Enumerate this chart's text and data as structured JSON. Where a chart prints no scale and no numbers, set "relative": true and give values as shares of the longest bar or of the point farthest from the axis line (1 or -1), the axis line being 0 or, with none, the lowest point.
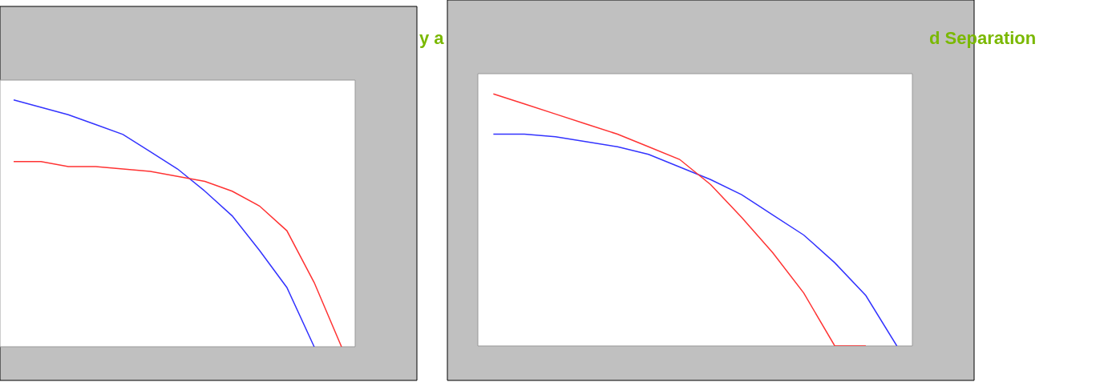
{
  "chart_data": [
    {
      "type": "line",
      "relative": true,
      "annotations": [
        "y a"
      ],
      "categories": [
        null,
        null,
        null,
        null,
        null,
        null,
        null,
        null,
        null,
        null,
        null,
        null,
        null
      ],
      "series": [
        {
          "color": "#3333ff",
          "values": [
            1,
            0.97,
            0.94,
            0.9,
            0.86,
            0.79,
            0.72,
            0.63,
            0.53,
            0.39,
            0.24,
            0,
            null
          ]
        },
        {
          "color": "#ff3333",
          "values": [
            0.75,
            0.75,
            0.73,
            0.73,
            0.72,
            0.71,
            0.69,
            0.67,
            0.63,
            0.57,
            0.47,
            0.26,
            0
          ]
        }
      ]
    },
    {
      "type": "line",
      "relative": true,
      "annotations": [
        "d Separation"
      ],
      "categories": [
        null,
        null,
        null,
        null,
        null,
        null,
        null,
        null,
        null,
        null,
        null,
        null,
        null,
        null
      ],
      "series": [
        {
          "color": "#3333ff",
          "values": [
            0.84,
            0.84,
            0.83,
            0.81,
            0.79,
            0.76,
            0.71,
            0.66,
            0.6,
            0.52,
            0.44,
            0.33,
            0.2,
            0
          ]
        },
        {
          "color": "#ff3333",
          "values": [
            1,
            0.96,
            0.92,
            0.88,
            0.84,
            0.79,
            0.74,
            0.64,
            0.51,
            0.37,
            0.21,
            0,
            0,
            null
          ]
        }
      ]
    }
  ]
}
